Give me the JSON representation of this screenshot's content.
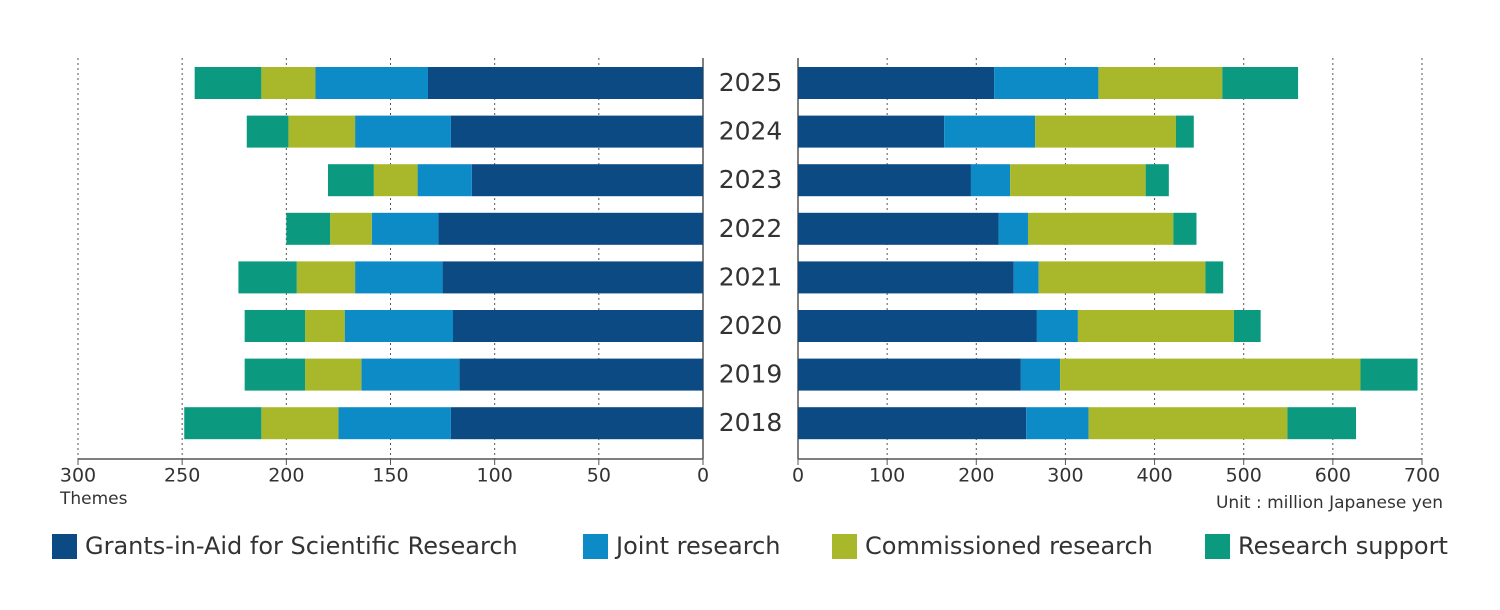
{
  "chart_data": {
    "type": "butterfly-bar",
    "categories": [
      "2025",
      "2024",
      "2023",
      "2022",
      "2021",
      "2020",
      "2019",
      "2018"
    ],
    "series": [
      {
        "name": "Grants-in-Aid for Scientific Research",
        "color": "#0b4a82",
        "values": [
          132,
          121,
          111,
          127,
          125,
          120,
          117,
          121
        ],
        "values2": [
          220,
          164,
          194,
          225,
          242,
          268,
          250,
          256
        ]
      },
      {
        "name": "Joint research",
        "color": "#0d8bc7",
        "values": [
          54,
          46,
          26,
          32,
          42,
          52,
          47,
          54
        ],
        "values2": [
          117,
          102,
          44,
          33,
          28,
          46,
          44,
          70
        ]
      },
      {
        "name": "Commissioned research",
        "color": "#a9b82b",
        "values": [
          26,
          32,
          21,
          20,
          28,
          19,
          27,
          37
        ],
        "values2": [
          139,
          158,
          152,
          163,
          187,
          175,
          337,
          223
        ]
      },
      {
        "name": "Research support",
        "color": "#0b9a80",
        "values": [
          32,
          20,
          22,
          21,
          28,
          29,
          29,
          37
        ],
        "values2": [
          85,
          20,
          26,
          26,
          20,
          30,
          64,
          77
        ]
      }
    ],
    "xlim": [
      0,
      300
    ],
    "xticks": [
      0,
      50,
      100,
      150,
      200,
      250,
      300
    ],
    "xlabel": "Themes",
    "x2lim": [
      0,
      700
    ],
    "x2ticks": [
      0,
      100,
      200,
      300,
      400,
      500,
      600,
      700
    ],
    "x2label": "Unit : million Japanese yen",
    "grid": true,
    "legend": "bottom"
  }
}
